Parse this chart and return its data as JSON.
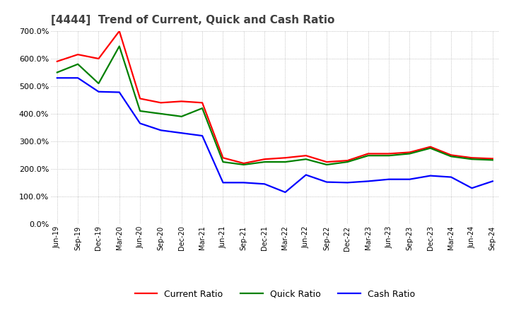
{
  "title": "[4444]  Trend of Current, Quick and Cash Ratio",
  "labels": [
    "Jun-19",
    "Sep-19",
    "Dec-19",
    "Mar-20",
    "Jun-20",
    "Sep-20",
    "Dec-20",
    "Mar-21",
    "Jun-21",
    "Sep-21",
    "Dec-21",
    "Mar-22",
    "Jun-22",
    "Sep-22",
    "Dec-22",
    "Mar-23",
    "Jun-23",
    "Sep-23",
    "Dec-23",
    "Mar-24",
    "Jun-24",
    "Sep-24"
  ],
  "current_ratio": [
    590,
    615,
    600,
    700,
    455,
    440,
    445,
    440,
    240,
    220,
    235,
    240,
    248,
    225,
    230,
    255,
    255,
    260,
    280,
    250,
    240,
    237
  ],
  "quick_ratio": [
    550,
    580,
    510,
    645,
    410,
    400,
    390,
    420,
    225,
    215,
    225,
    225,
    235,
    215,
    225,
    248,
    248,
    255,
    275,
    245,
    235,
    232
  ],
  "cash_ratio": [
    530,
    530,
    480,
    478,
    365,
    340,
    330,
    320,
    150,
    150,
    145,
    115,
    178,
    152,
    150,
    155,
    162,
    162,
    175,
    170,
    130,
    155
  ],
  "current_color": "#ff0000",
  "quick_color": "#008000",
  "cash_color": "#0000ff",
  "ylim": [
    0,
    700
  ],
  "yticks": [
    0,
    100,
    200,
    300,
    400,
    500,
    600,
    700
  ],
  "background_color": "#ffffff",
  "grid_color": "#b0b0b0",
  "title_color": "#404040",
  "title_fontsize": 11,
  "line_width": 1.6,
  "legend_labels": [
    "Current Ratio",
    "Quick Ratio",
    "Cash Ratio"
  ]
}
